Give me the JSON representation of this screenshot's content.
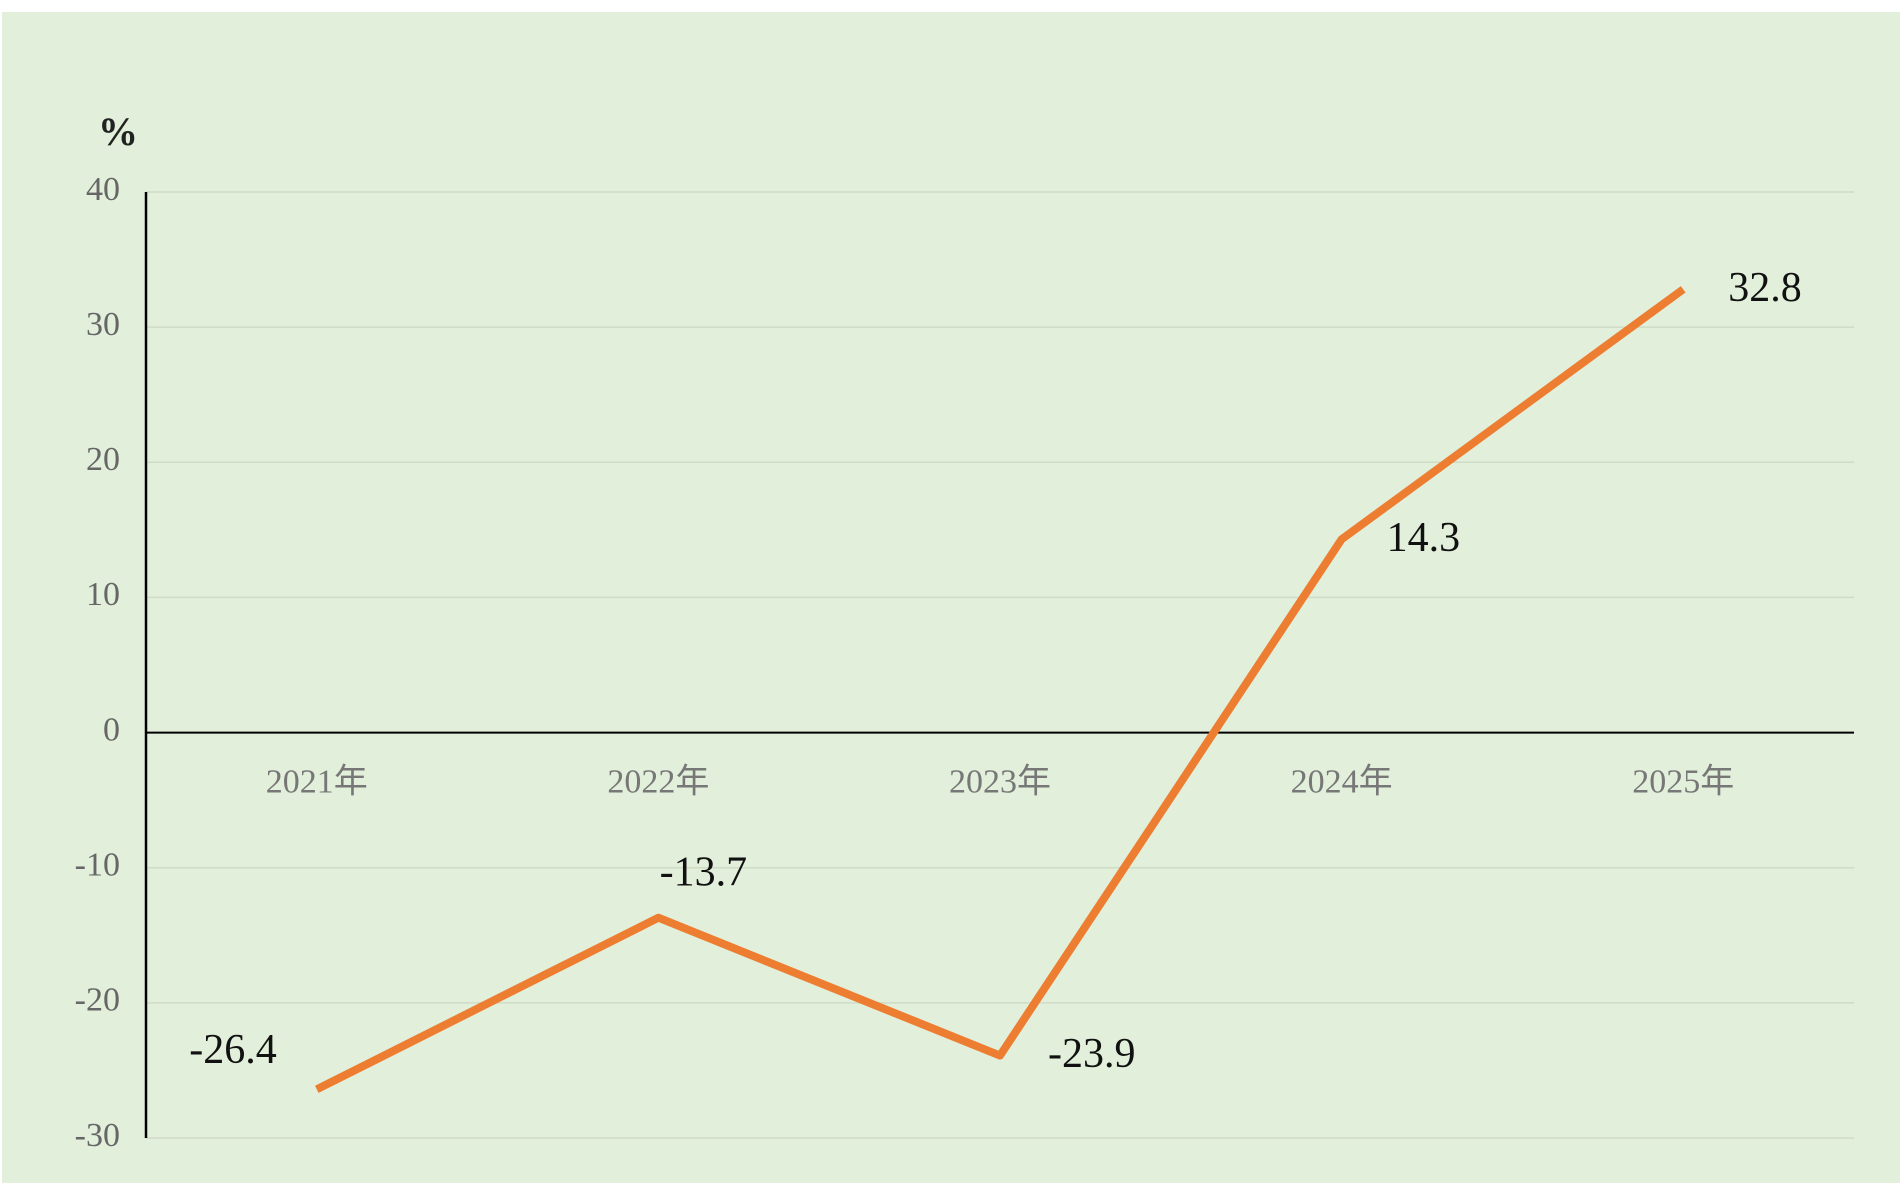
{
  "chart_data": {
    "type": "line",
    "y_label": "%",
    "categories": [
      "2021年",
      "2022年",
      "2023年",
      "2024年",
      "2025年"
    ],
    "values": [
      -26.4,
      -13.7,
      -23.9,
      14.3,
      32.8
    ],
    "color": "#ed7d31",
    "ylim": [
      -30,
      40
    ],
    "yticks": [
      -30,
      -20,
      -10,
      0,
      10,
      20,
      30,
      40
    ],
    "grid": true
  }
}
